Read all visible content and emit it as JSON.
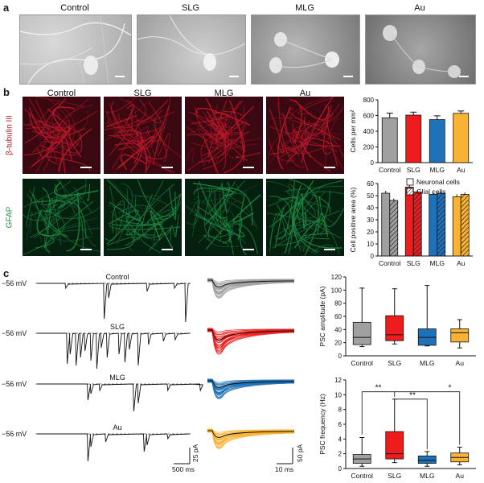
{
  "panels": {
    "a": "a",
    "b": "b",
    "c": "c"
  },
  "conditions": [
    "Control",
    "SLG",
    "MLG",
    "Au"
  ],
  "stains": {
    "red": "β-tubulin III",
    "green": "GFAP"
  },
  "colors": {
    "control": "#a0a0a0",
    "slg": "#ee1c1c",
    "mlg": "#1f72b8",
    "au": "#f9b233",
    "red_fl": "#c0182c",
    "green_fl": "#1e8a45"
  },
  "traces": {
    "voltage": [
      "−56 mV",
      "−56 mV",
      "−56 mV",
      "−56 mV"
    ],
    "scale_time": "500 ms",
    "scale_amp": "25 pA",
    "scale_time2": "10 ms",
    "scale_amp2": "50 pA"
  },
  "chart_data": [
    {
      "type": "bar",
      "categories": [
        "Control",
        "SLG",
        "MLG",
        "Au"
      ],
      "values": [
        570,
        605,
        548,
        628
      ],
      "errors": [
        60,
        38,
        48,
        30
      ],
      "ylabel": "Cells per mm²",
      "ylim": [
        0,
        800
      ],
      "yticks": [
        0,
        200,
        400,
        600,
        800
      ]
    },
    {
      "type": "bar",
      "categories": [
        "Control",
        "SLG",
        "MLG",
        "Au"
      ],
      "series": [
        {
          "name": "Neuronal cells",
          "values": [
            52,
            57,
            51,
            49
          ]
        },
        {
          "name": "Glial cells",
          "values": [
            46,
            53,
            52,
            51
          ]
        }
      ],
      "ylabel": "Cell positive area (%)",
      "ylim": [
        0,
        60
      ],
      "yticks": [
        0,
        10,
        20,
        30,
        40,
        50,
        60
      ]
    },
    {
      "type": "box",
      "categories": [
        "Control",
        "SLG",
        "MLG",
        "Au"
      ],
      "boxes": [
        {
          "min": 14,
          "q1": 17,
          "median": 28,
          "q3": 51,
          "max": 103
        },
        {
          "min": 18,
          "q1": 23,
          "median": 32,
          "q3": 61,
          "max": 102
        },
        {
          "min": 15,
          "q1": 16,
          "median": 28,
          "q3": 41,
          "max": 107
        },
        {
          "min": 12,
          "q1": 21,
          "median": 35,
          "q3": 41,
          "max": 55
        }
      ],
      "ylabel": "PSC amplitude (pA)",
      "ylim": [
        0,
        120
      ],
      "yticks": [
        0,
        20,
        40,
        60,
        80,
        100,
        120
      ]
    },
    {
      "type": "box",
      "categories": [
        "Control",
        "SLG",
        "MLG",
        "Au"
      ],
      "boxes": [
        {
          "min": 0.3,
          "q1": 0.7,
          "median": 1.3,
          "q3": 1.9,
          "max": 4.2
        },
        {
          "min": 0.8,
          "q1": 1.3,
          "median": 2.0,
          "q3": 5.0,
          "max": 9.4
        },
        {
          "min": 0.3,
          "q1": 0.7,
          "median": 1.1,
          "q3": 1.7,
          "max": 2.3
        },
        {
          "min": 0.5,
          "q1": 0.9,
          "median": 1.5,
          "q3": 2.1,
          "max": 2.9
        }
      ],
      "ylabel": "PSC frequency (Hz)",
      "ylim": [
        0,
        12
      ],
      "yticks": [
        0,
        2,
        4,
        6,
        8,
        10,
        12
      ],
      "significance": [
        "**",
        "**",
        "*"
      ]
    }
  ]
}
